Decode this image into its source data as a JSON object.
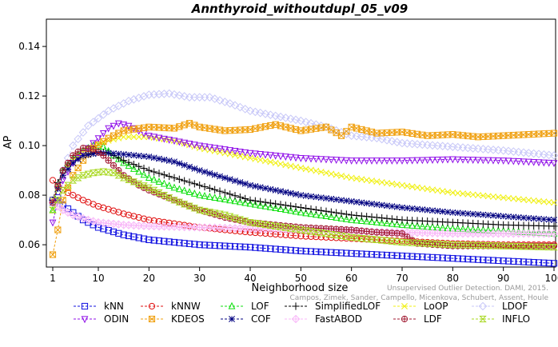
{
  "chart_data": {
    "type": "line",
    "title": "Annthyroid_withoutdupl_05_v09",
    "xlabel": "Neighborhood size",
    "ylabel": "AP",
    "xlim": [
      1,
      100
    ],
    "ylim": [
      0.051,
      0.151
    ],
    "x_ticks": [
      1,
      10,
      20,
      30,
      40,
      50,
      60,
      70,
      80,
      90,
      100
    ],
    "y_ticks": [
      0.06,
      0.08,
      0.1,
      0.12,
      0.14
    ],
    "y_tick_labels": [
      "0.06",
      "0.08",
      "0.10",
      "0.12",
      "0.14"
    ],
    "grid": false,
    "legend_position": "bottom",
    "credit": [
      "Unsupervised Outlier Detection. DAMI, 2015.",
      "Campos, Zimek, Sander, Campello, Micenkova, Schubert, Assent, Houle"
    ],
    "series": [
      {
        "name": "kNN",
        "color": "#1010e0",
        "marker": "square",
        "points": [
          [
            1,
            0.078
          ],
          [
            2,
            0.079
          ],
          [
            3,
            0.076
          ],
          [
            5,
            0.073
          ],
          [
            7,
            0.07
          ],
          [
            10,
            0.067
          ],
          [
            15,
            0.064
          ],
          [
            20,
            0.062
          ],
          [
            30,
            0.06
          ],
          [
            40,
            0.059
          ],
          [
            50,
            0.0575
          ],
          [
            60,
            0.0565
          ],
          [
            70,
            0.0555
          ],
          [
            80,
            0.0545
          ],
          [
            90,
            0.0535
          ],
          [
            100,
            0.0525
          ]
        ]
      },
      {
        "name": "kNNW",
        "color": "#e01010",
        "marker": "circle",
        "points": [
          [
            1,
            0.086
          ],
          [
            2,
            0.084
          ],
          [
            3,
            0.082
          ],
          [
            5,
            0.08
          ],
          [
            7,
            0.078
          ],
          [
            10,
            0.0755
          ],
          [
            15,
            0.0725
          ],
          [
            20,
            0.07
          ],
          [
            30,
            0.067
          ],
          [
            40,
            0.065
          ],
          [
            50,
            0.0635
          ],
          [
            60,
            0.0625
          ],
          [
            70,
            0.0615
          ],
          [
            80,
            0.0605
          ],
          [
            90,
            0.06
          ],
          [
            100,
            0.06
          ]
        ]
      },
      {
        "name": "LOF",
        "color": "#10e010",
        "marker": "triangle",
        "points": [
          [
            1,
            0.074
          ],
          [
            2,
            0.084
          ],
          [
            3,
            0.09
          ],
          [
            5,
            0.095
          ],
          [
            7,
            0.098
          ],
          [
            9,
            0.1
          ],
          [
            11,
            0.0995
          ],
          [
            13,
            0.096
          ],
          [
            15,
            0.093
          ],
          [
            20,
            0.087
          ],
          [
            25,
            0.083
          ],
          [
            30,
            0.08
          ],
          [
            40,
            0.0765
          ],
          [
            50,
            0.073
          ],
          [
            60,
            0.07
          ],
          [
            70,
            0.068
          ],
          [
            80,
            0.0665
          ],
          [
            90,
            0.0655
          ],
          [
            100,
            0.0645
          ]
        ]
      },
      {
        "name": "SimplifiedLOF",
        "color": "#000000",
        "marker": "plus",
        "points": [
          [
            1,
            0.078
          ],
          [
            2,
            0.085
          ],
          [
            3,
            0.09
          ],
          [
            5,
            0.094
          ],
          [
            7,
            0.096
          ],
          [
            10,
            0.0975
          ],
          [
            12,
            0.097
          ],
          [
            15,
            0.094
          ],
          [
            20,
            0.09
          ],
          [
            25,
            0.087
          ],
          [
            30,
            0.084
          ],
          [
            35,
            0.081
          ],
          [
            40,
            0.078
          ],
          [
            50,
            0.075
          ],
          [
            60,
            0.072
          ],
          [
            70,
            0.07
          ],
          [
            80,
            0.069
          ],
          [
            90,
            0.068
          ],
          [
            100,
            0.0675
          ]
        ]
      },
      {
        "name": "LoOP",
        "color": "#f0f010",
        "marker": "x",
        "points": [
          [
            1,
            0.078
          ],
          [
            3,
            0.088
          ],
          [
            5,
            0.094
          ],
          [
            8,
            0.099
          ],
          [
            12,
            0.102
          ],
          [
            15,
            0.1035
          ],
          [
            20,
            0.1035
          ],
          [
            25,
            0.102
          ],
          [
            30,
            0.099
          ],
          [
            40,
            0.095
          ],
          [
            50,
            0.091
          ],
          [
            60,
            0.087
          ],
          [
            70,
            0.084
          ],
          [
            80,
            0.081
          ],
          [
            90,
            0.079
          ],
          [
            100,
            0.077
          ]
        ]
      },
      {
        "name": "LDOF",
        "color": "#c8c8f8",
        "marker": "diamond",
        "points": [
          [
            1,
            0.077
          ],
          [
            3,
            0.09
          ],
          [
            5,
            0.1
          ],
          [
            8,
            0.108
          ],
          [
            12,
            0.114
          ],
          [
            16,
            0.118
          ],
          [
            20,
            0.1205
          ],
          [
            24,
            0.121
          ],
          [
            28,
            0.1195
          ],
          [
            32,
            0.1195
          ],
          [
            36,
            0.117
          ],
          [
            40,
            0.114
          ],
          [
            45,
            0.112
          ],
          [
            50,
            0.11
          ],
          [
            55,
            0.1075
          ],
          [
            60,
            0.104
          ],
          [
            65,
            0.103
          ],
          [
            70,
            0.101
          ],
          [
            80,
            0.0995
          ],
          [
            90,
            0.098
          ],
          [
            100,
            0.096
          ]
        ]
      },
      {
        "name": "ODIN",
        "color": "#9010e8",
        "marker": "triangle-down",
        "points": [
          [
            1,
            0.069
          ],
          [
            3,
            0.086
          ],
          [
            5,
            0.093
          ],
          [
            8,
            0.099
          ],
          [
            10,
            0.103
          ],
          [
            12,
            0.107
          ],
          [
            14,
            0.109
          ],
          [
            16,
            0.108
          ],
          [
            20,
            0.104
          ],
          [
            25,
            0.102
          ],
          [
            30,
            0.1
          ],
          [
            40,
            0.097
          ],
          [
            50,
            0.095
          ],
          [
            60,
            0.094
          ],
          [
            70,
            0.094
          ],
          [
            80,
            0.0945
          ],
          [
            90,
            0.094
          ],
          [
            100,
            0.093
          ]
        ]
      },
      {
        "name": "KDEOS",
        "color": "#f0a010",
        "marker": "boxed-x",
        "points": [
          [
            1,
            0.056
          ],
          [
            2,
            0.066
          ],
          [
            3,
            0.078
          ],
          [
            5,
            0.088
          ],
          [
            7,
            0.094
          ],
          [
            9,
            0.099
          ],
          [
            12,
            0.103
          ],
          [
            15,
            0.106
          ],
          [
            20,
            0.1075
          ],
          [
            25,
            0.107
          ],
          [
            28,
            0.109
          ],
          [
            30,
            0.1075
          ],
          [
            35,
            0.106
          ],
          [
            40,
            0.1065
          ],
          [
            45,
            0.1085
          ],
          [
            50,
            0.106
          ],
          [
            55,
            0.1075
          ],
          [
            58,
            0.104
          ],
          [
            60,
            0.1075
          ],
          [
            65,
            0.105
          ],
          [
            70,
            0.1055
          ],
          [
            75,
            0.104
          ],
          [
            80,
            0.1045
          ],
          [
            85,
            0.1035
          ],
          [
            90,
            0.104
          ],
          [
            95,
            0.1045
          ],
          [
            100,
            0.105
          ]
        ]
      },
      {
        "name": "COF",
        "color": "#000080",
        "marker": "star",
        "points": [
          [
            1,
            0.077
          ],
          [
            3,
            0.088
          ],
          [
            5,
            0.093
          ],
          [
            7,
            0.096
          ],
          [
            10,
            0.097
          ],
          [
            12,
            0.097
          ],
          [
            15,
            0.0965
          ],
          [
            20,
            0.0955
          ],
          [
            25,
            0.0935
          ],
          [
            30,
            0.09
          ],
          [
            35,
            0.087
          ],
          [
            40,
            0.084
          ],
          [
            45,
            0.082
          ],
          [
            50,
            0.08
          ],
          [
            60,
            0.0775
          ],
          [
            70,
            0.075
          ],
          [
            80,
            0.073
          ],
          [
            90,
            0.0715
          ],
          [
            100,
            0.07
          ]
        ]
      },
      {
        "name": "FastABOD",
        "color": "#f8b8f8",
        "marker": "diamond-plus",
        "points": [
          [
            1,
            0.077
          ],
          [
            3,
            0.074
          ],
          [
            5,
            0.072
          ],
          [
            8,
            0.07
          ],
          [
            10,
            0.069
          ],
          [
            15,
            0.068
          ],
          [
            20,
            0.0675
          ],
          [
            30,
            0.067
          ],
          [
            40,
            0.0665
          ],
          [
            50,
            0.066
          ],
          [
            60,
            0.0655
          ],
          [
            70,
            0.065
          ],
          [
            80,
            0.0645
          ],
          [
            90,
            0.0645
          ],
          [
            100,
            0.0645
          ]
        ]
      },
      {
        "name": "LDF",
        "color": "#a01830",
        "marker": "circle-plus",
        "points": [
          [
            1,
            0.077
          ],
          [
            3,
            0.09
          ],
          [
            5,
            0.096
          ],
          [
            7,
            0.099
          ],
          [
            9,
            0.0985
          ],
          [
            11,
            0.096
          ],
          [
            13,
            0.092
          ],
          [
            15,
            0.088
          ],
          [
            18,
            0.084
          ],
          [
            20,
            0.082
          ],
          [
            25,
            0.078
          ],
          [
            30,
            0.074
          ],
          [
            35,
            0.071
          ],
          [
            40,
            0.069
          ],
          [
            50,
            0.067
          ],
          [
            60,
            0.066
          ],
          [
            65,
            0.065
          ],
          [
            70,
            0.0645
          ],
          [
            73,
            0.0605
          ],
          [
            80,
            0.0595
          ],
          [
            90,
            0.0595
          ],
          [
            100,
            0.0595
          ]
        ]
      },
      {
        "name": "INFLO",
        "color": "#a8d820",
        "marker": "hourglass",
        "points": [
          [
            1,
            0.074
          ],
          [
            3,
            0.082
          ],
          [
            5,
            0.086
          ],
          [
            7,
            0.088
          ],
          [
            9,
            0.089
          ],
          [
            11,
            0.0895
          ],
          [
            13,
            0.089
          ],
          [
            15,
            0.087
          ],
          [
            20,
            0.083
          ],
          [
            25,
            0.078
          ],
          [
            30,
            0.074
          ],
          [
            35,
            0.072
          ],
          [
            40,
            0.069
          ],
          [
            50,
            0.066
          ],
          [
            60,
            0.063
          ],
          [
            70,
            0.061
          ],
          [
            80,
            0.06
          ],
          [
            90,
            0.0595
          ],
          [
            100,
            0.059
          ]
        ]
      }
    ]
  }
}
